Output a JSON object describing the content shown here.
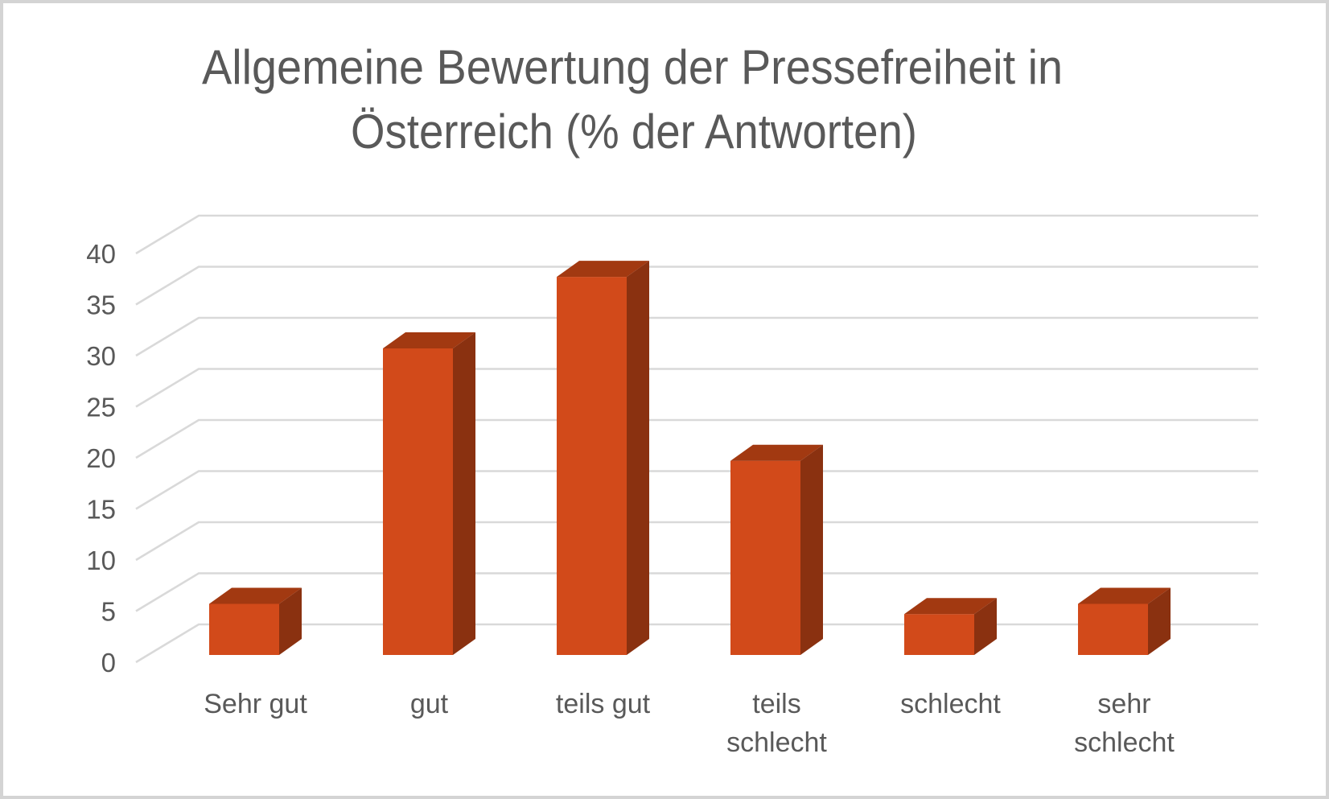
{
  "chart_data": {
    "type": "bar",
    "style": "3d-column",
    "title": "Allgemeine Bewertung der Pressefreiheit in Österreich (% der Antworten)",
    "title_lines": [
      "Allgemeine Bewertung der Pressefreiheit in",
      "Österreich (% der Antworten)"
    ],
    "categories": [
      "Sehr gut",
      "gut",
      "teils gut",
      "teils schlecht",
      "schlecht",
      "sehr schlecht"
    ],
    "category_label_lines": [
      [
        "Sehr gut"
      ],
      [
        "gut"
      ],
      [
        "teils gut"
      ],
      [
        "teils",
        "schlecht"
      ],
      [
        "schlecht"
      ],
      [
        "sehr",
        "schlecht"
      ]
    ],
    "values": [
      5,
      30,
      37,
      19,
      4,
      5
    ],
    "unit": "% der Antworten",
    "xlabel": "",
    "ylabel": "",
    "ylim": [
      0,
      40
    ],
    "ytick_step": 5,
    "yticks": [
      0,
      5,
      10,
      15,
      20,
      25,
      30,
      35,
      40
    ],
    "grid": true,
    "legend": "none",
    "colors": {
      "bar_front": "#D24A1A",
      "bar_top": "#A23911",
      "bar_side": "#8A3110",
      "gridline": "#D9D9D9",
      "text": "#595959",
      "background": "#FFFFFF",
      "frame_border": "#D4D4D4"
    }
  }
}
